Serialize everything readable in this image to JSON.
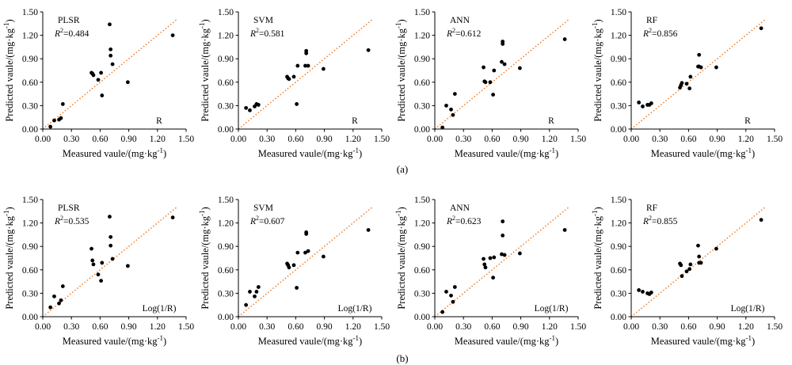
{
  "figure": {
    "panel_labels": [
      "(a)",
      "(b)"
    ],
    "x_axis_label": "Measured vaule/(mg·kg",
    "y_axis_label": "Predicted vaule/(mg·kg",
    "unit_superscript": "-1",
    "x_ticks": [
      "0.00",
      "0.30",
      "0.60",
      "0.90",
      "1.20",
      "1.50"
    ],
    "y_ticks": [
      "0.00",
      "0.30",
      "0.60",
      "0.90",
      "1.20",
      "1.50"
    ],
    "r2_prefix": "R",
    "r2_exponent": "2"
  },
  "chart_data": [
    {
      "type": "scatter",
      "row": "a",
      "model": "PLSR",
      "r2": "=0.484",
      "spectrum": "R",
      "xlim": [
        0,
        1.5
      ],
      "ylim": [
        0,
        1.5
      ],
      "x": [
        0.08,
        0.12,
        0.17,
        0.19,
        0.21,
        0.51,
        0.52,
        0.53,
        0.58,
        0.61,
        0.62,
        0.7,
        0.71,
        0.71,
        0.73,
        0.89,
        1.36
      ],
      "y": [
        0.03,
        0.11,
        0.12,
        0.14,
        0.32,
        0.72,
        0.71,
        0.69,
        0.63,
        0.72,
        0.43,
        1.34,
        0.94,
        1.02,
        0.83,
        0.6,
        1.2
      ]
    },
    {
      "type": "scatter",
      "row": "a",
      "model": "SVM",
      "r2": "=0.581",
      "spectrum": "R",
      "xlim": [
        0,
        1.5
      ],
      "ylim": [
        0,
        1.5
      ],
      "x": [
        0.08,
        0.12,
        0.17,
        0.19,
        0.21,
        0.51,
        0.52,
        0.53,
        0.58,
        0.61,
        0.62,
        0.7,
        0.71,
        0.71,
        0.73,
        0.89,
        1.36
      ],
      "y": [
        0.27,
        0.24,
        0.29,
        0.32,
        0.31,
        0.67,
        0.65,
        0.64,
        0.67,
        0.32,
        0.81,
        0.81,
        1.0,
        0.97,
        0.81,
        0.77,
        1.01
      ]
    },
    {
      "type": "scatter",
      "row": "a",
      "model": "ANN",
      "r2": "=0.612",
      "spectrum": "R",
      "xlim": [
        0,
        1.5
      ],
      "ylim": [
        0,
        1.5
      ],
      "x": [
        0.08,
        0.12,
        0.17,
        0.19,
        0.21,
        0.51,
        0.52,
        0.53,
        0.58,
        0.61,
        0.62,
        0.7,
        0.71,
        0.71,
        0.73,
        0.89,
        1.36
      ],
      "y": [
        0.02,
        0.3,
        0.25,
        0.18,
        0.45,
        0.79,
        0.61,
        0.6,
        0.6,
        0.44,
        0.75,
        0.86,
        1.09,
        1.12,
        0.83,
        0.78,
        1.15
      ]
    },
    {
      "type": "scatter",
      "row": "a",
      "model": "RF",
      "r2": "=0.856",
      "spectrum": "R",
      "xlim": [
        0,
        1.5
      ],
      "ylim": [
        0,
        1.5
      ],
      "x": [
        0.08,
        0.12,
        0.17,
        0.19,
        0.21,
        0.51,
        0.52,
        0.53,
        0.58,
        0.61,
        0.62,
        0.7,
        0.71,
        0.71,
        0.73,
        0.89,
        1.36
      ],
      "y": [
        0.34,
        0.29,
        0.31,
        0.31,
        0.33,
        0.53,
        0.56,
        0.59,
        0.58,
        0.52,
        0.67,
        0.8,
        0.95,
        0.8,
        0.79,
        0.79,
        1.29
      ]
    },
    {
      "type": "scatter",
      "row": "b",
      "model": "PLSR",
      "r2": "=0.535",
      "spectrum": "Log(1/R)",
      "xlim": [
        0,
        1.5
      ],
      "ylim": [
        0,
        1.5
      ],
      "x": [
        0.08,
        0.12,
        0.17,
        0.19,
        0.21,
        0.51,
        0.52,
        0.53,
        0.58,
        0.61,
        0.62,
        0.7,
        0.71,
        0.71,
        0.73,
        0.89,
        1.36
      ],
      "y": [
        0.12,
        0.26,
        0.17,
        0.21,
        0.39,
        0.87,
        0.72,
        0.67,
        0.54,
        0.46,
        0.69,
        1.28,
        1.02,
        0.91,
        0.74,
        0.65,
        1.27
      ]
    },
    {
      "type": "scatter",
      "row": "b",
      "model": "SVM",
      "r2": "=0.607",
      "spectrum": "Log(1/R)",
      "xlim": [
        0,
        1.5
      ],
      "ylim": [
        0,
        1.5
      ],
      "x": [
        0.08,
        0.12,
        0.17,
        0.19,
        0.21,
        0.51,
        0.52,
        0.53,
        0.58,
        0.61,
        0.62,
        0.7,
        0.71,
        0.71,
        0.73,
        0.89,
        1.36
      ],
      "y": [
        0.15,
        0.32,
        0.26,
        0.32,
        0.38,
        0.68,
        0.66,
        0.63,
        0.66,
        0.37,
        0.82,
        0.82,
        1.08,
        1.06,
        0.84,
        0.77,
        1.11
      ]
    },
    {
      "type": "scatter",
      "row": "b",
      "model": "ANN",
      "r2": "=0.623",
      "spectrum": "Log(1/R)",
      "xlim": [
        0,
        1.5
      ],
      "ylim": [
        0,
        1.5
      ],
      "x": [
        0.08,
        0.12,
        0.17,
        0.19,
        0.21,
        0.51,
        0.52,
        0.53,
        0.58,
        0.61,
        0.62,
        0.7,
        0.71,
        0.71,
        0.73,
        0.89,
        1.36
      ],
      "y": [
        0.06,
        0.32,
        0.27,
        0.19,
        0.38,
        0.74,
        0.67,
        0.63,
        0.75,
        0.5,
        0.76,
        0.8,
        1.22,
        1.04,
        0.79,
        0.81,
        1.11
      ]
    },
    {
      "type": "scatter",
      "row": "b",
      "model": "RF",
      "r2": "=0.855",
      "spectrum": "Log(1/R)",
      "xlim": [
        0,
        1.5
      ],
      "ylim": [
        0,
        1.5
      ],
      "x": [
        0.08,
        0.12,
        0.17,
        0.19,
        0.21,
        0.51,
        0.52,
        0.53,
        0.58,
        0.61,
        0.62,
        0.7,
        0.71,
        0.71,
        0.73,
        0.89,
        1.36
      ],
      "y": [
        0.34,
        0.32,
        0.3,
        0.29,
        0.31,
        0.68,
        0.66,
        0.52,
        0.58,
        0.61,
        0.67,
        0.91,
        0.77,
        0.69,
        0.69,
        0.87,
        1.24
      ]
    }
  ],
  "colors": {
    "points": "#000000",
    "reference_line": "#e8843a",
    "axis": "#000000"
  }
}
